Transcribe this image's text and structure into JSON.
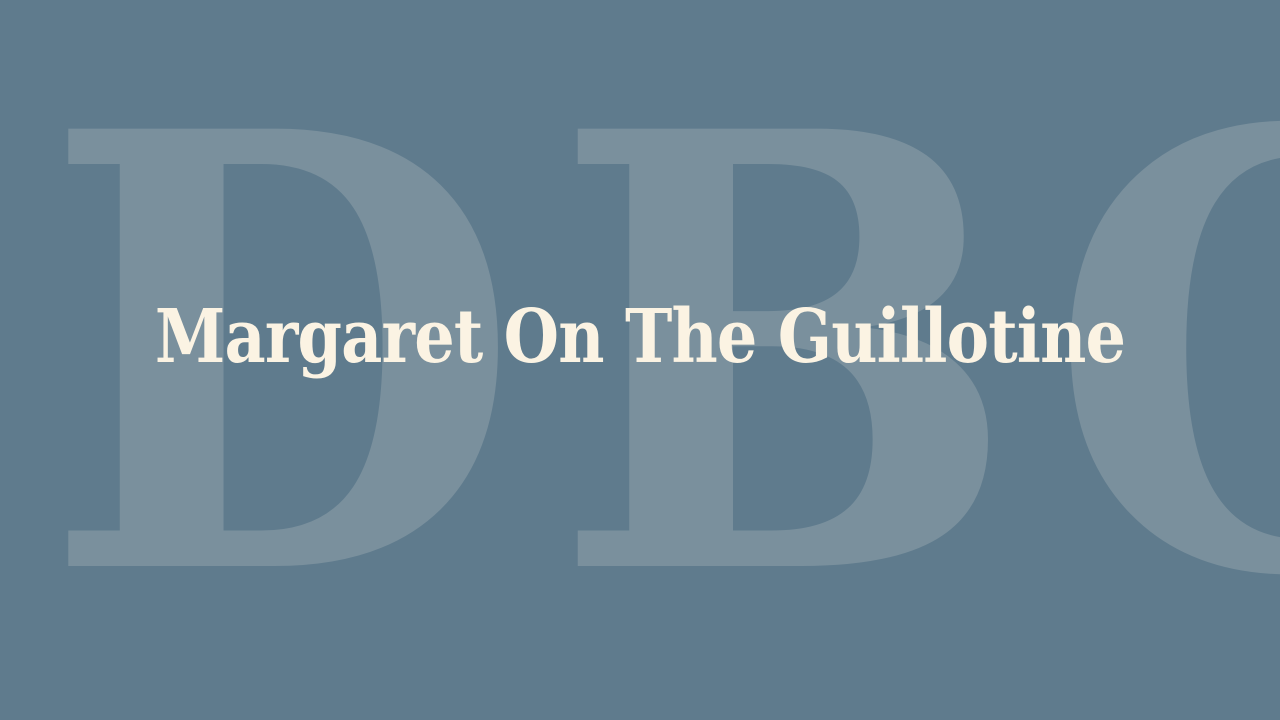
{
  "background_color": "#5f7b8d",
  "watermark": {
    "letters": [
      "D",
      "B",
      "C"
    ],
    "color": "#7a909d"
  },
  "title": {
    "text": "Margaret On The Guillotine",
    "color": "#fbf3e3"
  }
}
